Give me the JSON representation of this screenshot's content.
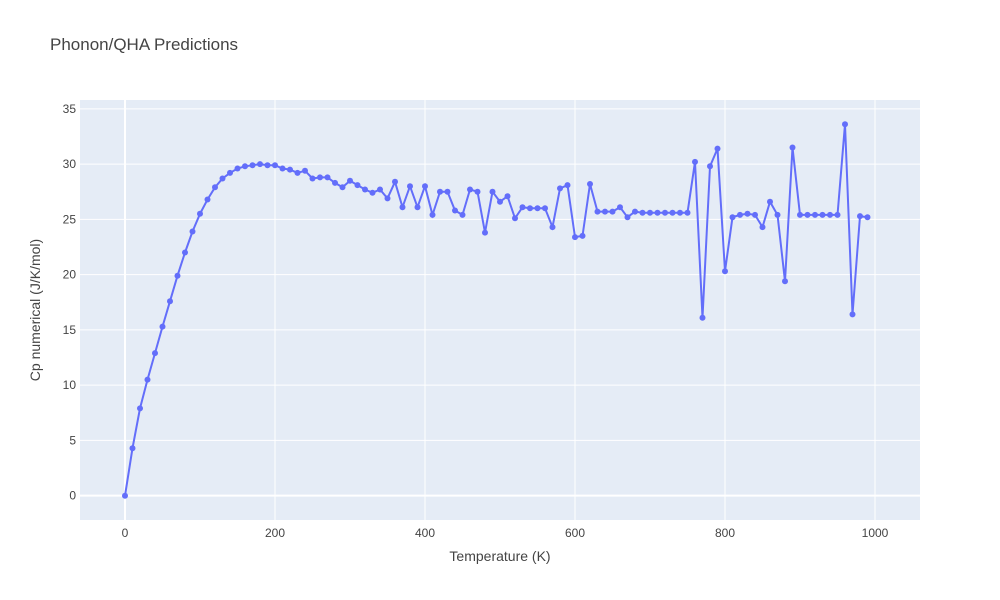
{
  "chart_data": {
    "type": "line",
    "title": "Phonon/QHA Predictions",
    "xlabel": "Temperature (K)",
    "ylabel": "Cp numerical (J/K/mol)",
    "xlim": [
      -60,
      1060
    ],
    "ylim": [
      -2.2,
      35.8
    ],
    "xticks": [
      0,
      200,
      400,
      600,
      800,
      1000
    ],
    "yticks": [
      0,
      5,
      10,
      15,
      20,
      25,
      30,
      35
    ],
    "grid": true,
    "legend": "none",
    "colors": {
      "plot_bg": "#E5ECF6",
      "grid": "#ffffff",
      "line": "#636EFA"
    },
    "series": [
      {
        "x": [
          0,
          10,
          20,
          30,
          40,
          50,
          60,
          70,
          80,
          90,
          100,
          110,
          120,
          130,
          140,
          150,
          160,
          170,
          180,
          190,
          200,
          210,
          220,
          230,
          240,
          250,
          260,
          270,
          280,
          290,
          300,
          310,
          320,
          330,
          340,
          350,
          360,
          370,
          380,
          390,
          400,
          410,
          420,
          430,
          440,
          450,
          460,
          470,
          480,
          490,
          500,
          510,
          520,
          530,
          540,
          550,
          560,
          570,
          580,
          590,
          600,
          610,
          620,
          630,
          640,
          650,
          660,
          670,
          680,
          690,
          700,
          710,
          720,
          730,
          740,
          750,
          760,
          770,
          780,
          790,
          800,
          810,
          820,
          830,
          840,
          850,
          860,
          870,
          880,
          890,
          900,
          910,
          920,
          930,
          940,
          950,
          960,
          970,
          980,
          990
        ],
        "y": [
          0.0,
          4.3,
          7.9,
          10.5,
          12.9,
          15.3,
          17.6,
          19.9,
          22.0,
          23.9,
          25.5,
          26.8,
          27.9,
          28.7,
          29.2,
          29.6,
          29.8,
          29.9,
          30.0,
          29.9,
          29.9,
          29.6,
          29.5,
          29.2,
          29.4,
          28.7,
          28.8,
          28.8,
          28.3,
          27.9,
          28.5,
          28.1,
          27.7,
          27.4,
          27.7,
          26.9,
          28.4,
          26.1,
          28.0,
          26.1,
          28.0,
          25.4,
          27.5,
          27.5,
          25.8,
          25.4,
          27.7,
          27.5,
          23.8,
          27.5,
          26.6,
          27.1,
          25.1,
          26.1,
          26.0,
          26.0,
          26.0,
          24.3,
          27.8,
          28.1,
          23.4,
          23.5,
          28.2,
          25.7,
          25.7,
          25.7,
          26.1,
          25.2,
          25.7,
          25.6,
          25.6,
          25.6,
          25.6,
          25.6,
          25.6,
          25.6,
          30.2,
          16.1,
          29.8,
          31.4,
          20.3,
          25.2,
          25.4,
          25.5,
          25.4,
          24.3,
          26.6,
          25.4,
          19.4,
          31.5,
          25.4,
          25.4,
          25.4,
          25.4,
          25.4,
          25.4,
          33.6,
          16.4,
          25.3,
          25.2
        ]
      }
    ]
  }
}
